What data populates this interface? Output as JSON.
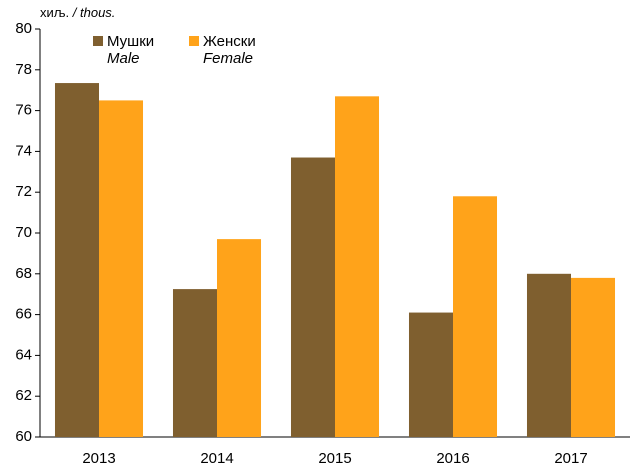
{
  "chart_data": {
    "type": "bar",
    "unit_label": "хиљ.",
    "unit_label_en": "/ thous.",
    "categories": [
      "2013",
      "2014",
      "2015",
      "2016",
      "2017"
    ],
    "series": [
      {
        "name": "Мушки",
        "name_en": "Male",
        "color": "#7f5f2f",
        "values": [
          77.35,
          67.25,
          73.7,
          66.1,
          68.0
        ]
      },
      {
        "name": "Женски",
        "name_en": "Female",
        "color": "#ffa31a",
        "values": [
          76.5,
          69.7,
          76.7,
          71.8,
          67.8
        ]
      }
    ],
    "ylim": [
      60,
      80
    ],
    "yticks": [
      60,
      62,
      64,
      66,
      68,
      70,
      72,
      74,
      76,
      78,
      80
    ],
    "grid": false
  }
}
